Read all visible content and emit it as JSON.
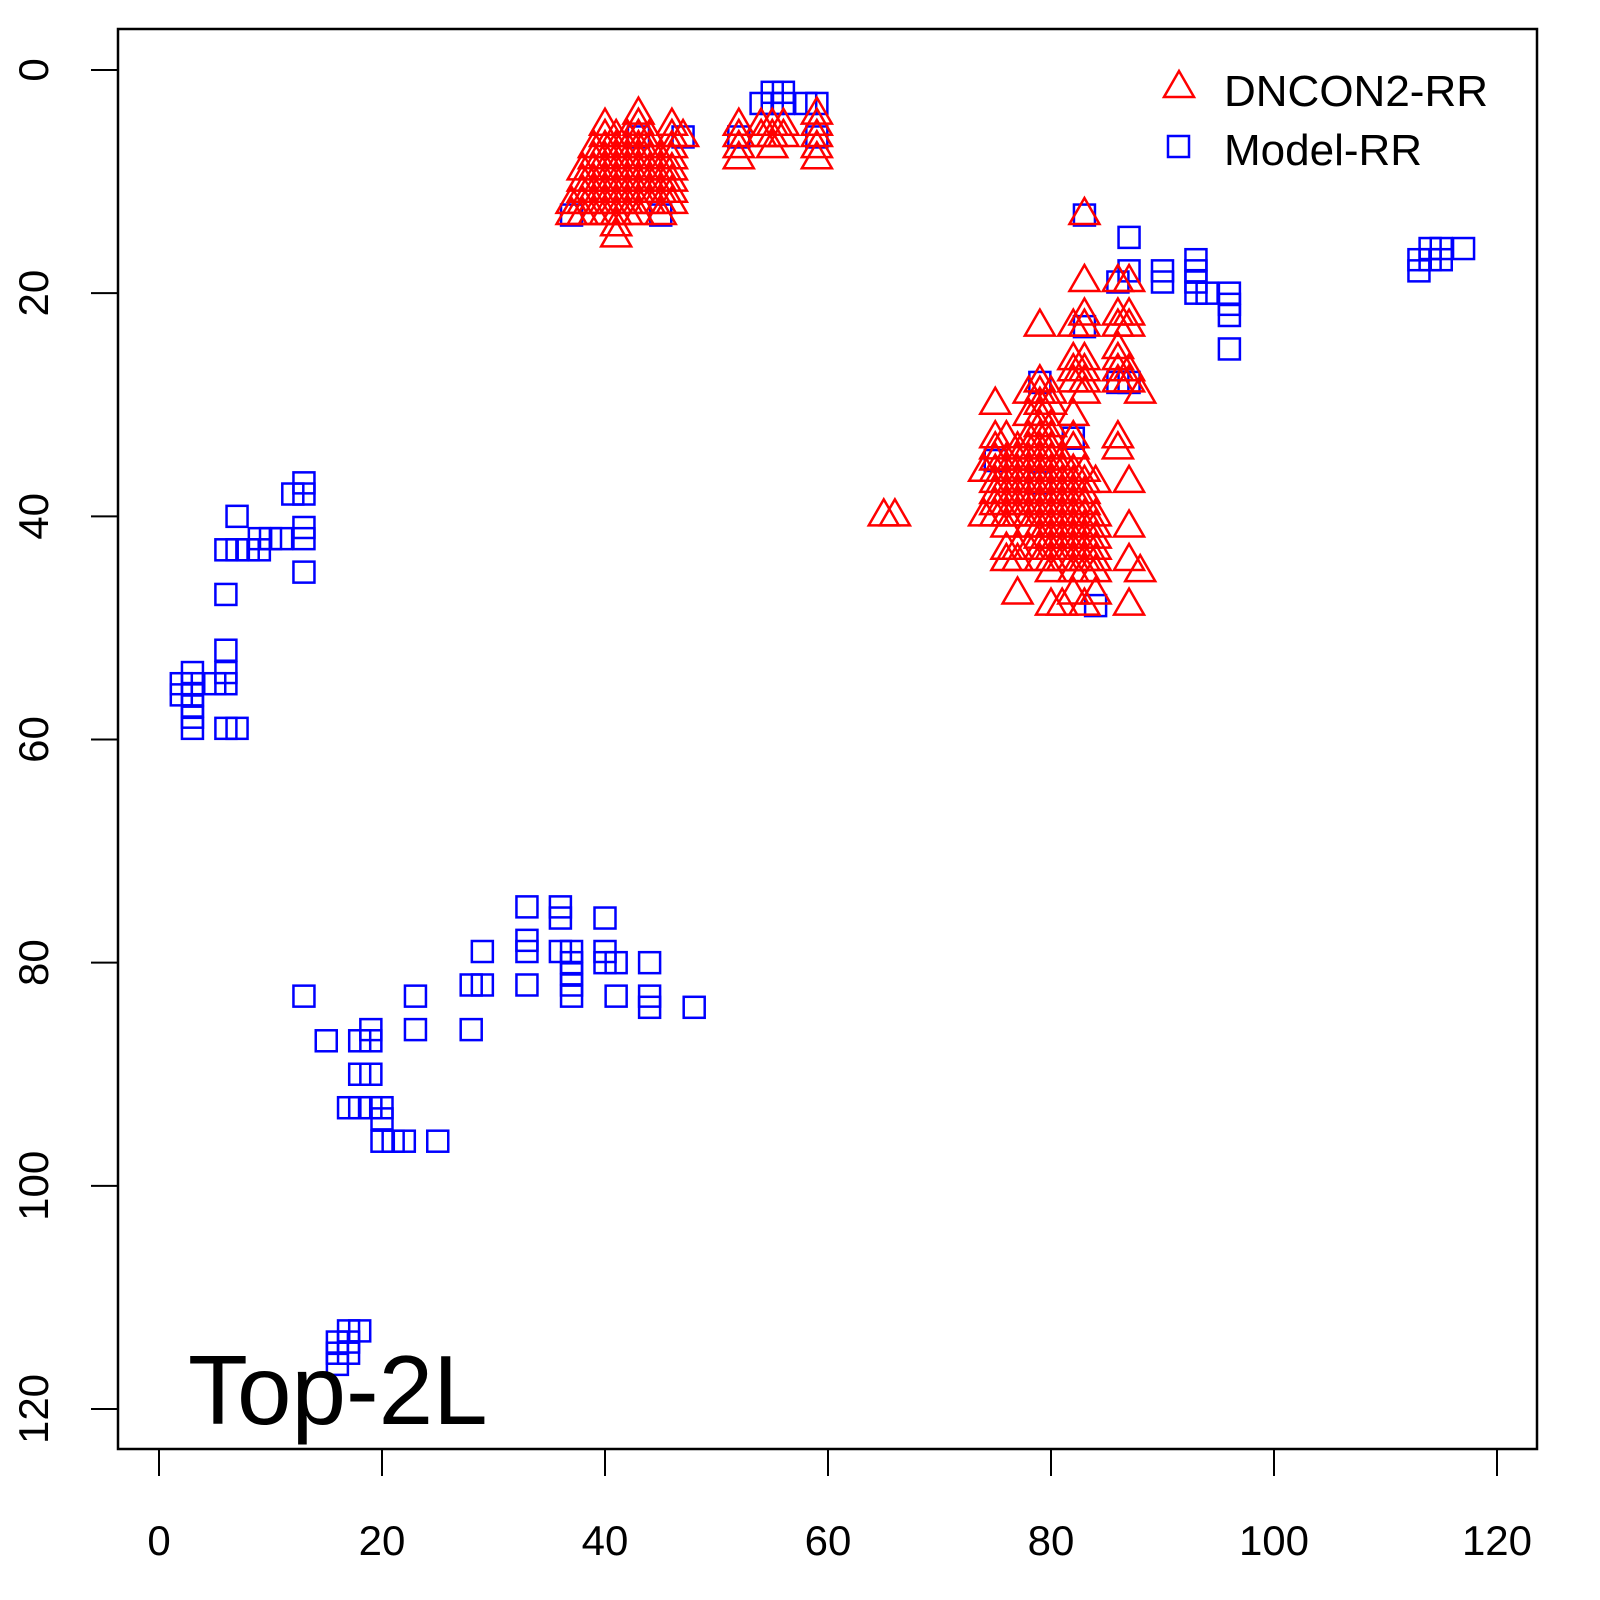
{
  "chart_data": {
    "type": "scatter",
    "title": "",
    "annotation": "Top-2L",
    "xlabel": "",
    "ylabel": "",
    "xlim": [
      -2,
      124
    ],
    "ylim": [
      124,
      -4
    ],
    "y_inverted": true,
    "x_ticks": [
      0,
      20,
      40,
      60,
      80,
      100,
      120
    ],
    "y_ticks": [
      0,
      20,
      40,
      60,
      80,
      100,
      120
    ],
    "legend": {
      "placement": "top-right",
      "entries": [
        "DNCON2-RR",
        "Model-RR"
      ]
    },
    "series": [
      {
        "name": "DNCON2-RR",
        "marker": "triangle",
        "color": "#ff0000",
        "columns": [
          {
            "x": 37,
            "ys": [
              12,
              13
            ]
          },
          {
            "x": 38,
            "ys": [
              9,
              10,
              11,
              12,
              13
            ]
          },
          {
            "x": 39,
            "ys": [
              7,
              8,
              9,
              10,
              11,
              12,
              13
            ]
          },
          {
            "x": 40,
            "ys": [
              5,
              6,
              7,
              8,
              9,
              10,
              11,
              12,
              13
            ]
          },
          {
            "x": 41,
            "ys": [
              6,
              7,
              8,
              9,
              10,
              11,
              12,
              13,
              14,
              15
            ]
          },
          {
            "x": 42,
            "ys": [
              6,
              7,
              8,
              9,
              10,
              11,
              12,
              13
            ]
          },
          {
            "x": 43,
            "ys": [
              4,
              5,
              6,
              7,
              8,
              9,
              10,
              11,
              12,
              13
            ]
          },
          {
            "x": 44,
            "ys": [
              6,
              7,
              8,
              9,
              10,
              11,
              12
            ]
          },
          {
            "x": 45,
            "ys": [
              8,
              9,
              10,
              11,
              12,
              13
            ]
          },
          {
            "x": 46,
            "ys": [
              5,
              6,
              7,
              8,
              9,
              10,
              11,
              12
            ]
          },
          {
            "x": 47,
            "ys": [
              6
            ]
          },
          {
            "x": 52,
            "ys": [
              5,
              6,
              7,
              8
            ]
          },
          {
            "x": 54,
            "ys": [
              5,
              6
            ]
          },
          {
            "x": 55,
            "ys": [
              5,
              6,
              7
            ]
          },
          {
            "x": 56,
            "ys": [
              5,
              6
            ]
          },
          {
            "x": 59,
            "ys": [
              4,
              5,
              6,
              7,
              8
            ]
          },
          {
            "x": 65,
            "ys": [
              40
            ]
          },
          {
            "x": 66,
            "ys": [
              40
            ]
          },
          {
            "x": 74,
            "ys": [
              36,
              40
            ]
          },
          {
            "x": 75,
            "ys": [
              30,
              33,
              34,
              35,
              36,
              37,
              38,
              39,
              40
            ]
          },
          {
            "x": 76,
            "ys": [
              33,
              35,
              36,
              37,
              38,
              39,
              40,
              41,
              43,
              44
            ]
          },
          {
            "x": 77,
            "ys": [
              34,
              35,
              36,
              37,
              38,
              39,
              40,
              43,
              44,
              47
            ]
          },
          {
            "x": 78,
            "ys": [
              29,
              31,
              33,
              34,
              35,
              36,
              37,
              38,
              39,
              40,
              41,
              43
            ]
          },
          {
            "x": 79,
            "ys": [
              23,
              28,
              29,
              30,
              31,
              32,
              33,
              34,
              35,
              36,
              37,
              38,
              39,
              40,
              41,
              42,
              43,
              44
            ]
          },
          {
            "x": 80,
            "ys": [
              29,
              30,
              32,
              33,
              34,
              35,
              36,
              37,
              38,
              39,
              40,
              41,
              42,
              43,
              44,
              45,
              48
            ]
          },
          {
            "x": 81,
            "ys": [
              35,
              36,
              37,
              38,
              39,
              40,
              41,
              42,
              43,
              44,
              48
            ]
          },
          {
            "x": 82,
            "ys": [
              23,
              26,
              27,
              28,
              31,
              33,
              34,
              36,
              37,
              38,
              39,
              40,
              41,
              42,
              43,
              44,
              45,
              47
            ]
          },
          {
            "x": 83,
            "ys": [
              13,
              19,
              22,
              23,
              26,
              27,
              28,
              29,
              36,
              37,
              38,
              39,
              40,
              41,
              42,
              43,
              44,
              45,
              48
            ]
          },
          {
            "x": 84,
            "ys": [
              37,
              40,
              41,
              42,
              43,
              44,
              45,
              47
            ]
          },
          {
            "x": 86,
            "ys": [
              19,
              22,
              23,
              25,
              26,
              27,
              28,
              33,
              34
            ]
          },
          {
            "x": 87,
            "ys": [
              19,
              22,
              23,
              27,
              28,
              37,
              41,
              44,
              48
            ]
          },
          {
            "x": 88,
            "ys": [
              29,
              45
            ]
          }
        ]
      },
      {
        "name": "Model-RR",
        "marker": "square",
        "color": "#0000ff",
        "points": [
          [
            7,
            40
          ],
          [
            6,
            43
          ],
          [
            7,
            43
          ],
          [
            8,
            43
          ],
          [
            9,
            42
          ],
          [
            9,
            43
          ],
          [
            10,
            42
          ],
          [
            11,
            42
          ],
          [
            12,
            38
          ],
          [
            13,
            38
          ],
          [
            13,
            37
          ],
          [
            13,
            41
          ],
          [
            13,
            42
          ],
          [
            13,
            45
          ],
          [
            6,
            47
          ],
          [
            6,
            52
          ],
          [
            6,
            54
          ],
          [
            6,
            55
          ],
          [
            5,
            55
          ],
          [
            7,
            59
          ],
          [
            6,
            59
          ],
          [
            3,
            54
          ],
          [
            3,
            55
          ],
          [
            2,
            55
          ],
          [
            2,
            56
          ],
          [
            3,
            56
          ],
          [
            3,
            57
          ],
          [
            3,
            58
          ],
          [
            3,
            59
          ],
          [
            13,
            83
          ],
          [
            15,
            87
          ],
          [
            18,
            87
          ],
          [
            19,
            86
          ],
          [
            19,
            87
          ],
          [
            18,
            90
          ],
          [
            19,
            90
          ],
          [
            17,
            93
          ],
          [
            18,
            93
          ],
          [
            19,
            93
          ],
          [
            20,
            93
          ],
          [
            20,
            94
          ],
          [
            20,
            96
          ],
          [
            21,
            96
          ],
          [
            22,
            96
          ],
          [
            25,
            96
          ],
          [
            23,
            83
          ],
          [
            23,
            86
          ],
          [
            28,
            86
          ],
          [
            28,
            82
          ],
          [
            29,
            82
          ],
          [
            29,
            79
          ],
          [
            33,
            75
          ],
          [
            33,
            78
          ],
          [
            33,
            79
          ],
          [
            33,
            82
          ],
          [
            36,
            75
          ],
          [
            36,
            76
          ],
          [
            36,
            79
          ],
          [
            37,
            79
          ],
          [
            37,
            80
          ],
          [
            37,
            81
          ],
          [
            37,
            82
          ],
          [
            37,
            83
          ],
          [
            40,
            76
          ],
          [
            40,
            79
          ],
          [
            40,
            80
          ],
          [
            41,
            80
          ],
          [
            41,
            83
          ],
          [
            44,
            80
          ],
          [
            44,
            83
          ],
          [
            44,
            84
          ],
          [
            48,
            84
          ],
          [
            16,
            114
          ],
          [
            16,
            115
          ],
          [
            16,
            116
          ],
          [
            17,
            113
          ],
          [
            17,
            114
          ],
          [
            17,
            115
          ],
          [
            18,
            113
          ],
          [
            54,
            3
          ],
          [
            55,
            2
          ],
          [
            56,
            2
          ],
          [
            55,
            3
          ],
          [
            56,
            3
          ],
          [
            58,
            3
          ],
          [
            59,
            3
          ],
          [
            52,
            6
          ],
          [
            47,
            6
          ],
          [
            37,
            13
          ],
          [
            45,
            13
          ],
          [
            43,
            6
          ],
          [
            59,
            6
          ],
          [
            83,
            13
          ],
          [
            87,
            15
          ],
          [
            87,
            18
          ],
          [
            86,
            19
          ],
          [
            90,
            18
          ],
          [
            90,
            19
          ],
          [
            93,
            17
          ],
          [
            93,
            18
          ],
          [
            93,
            19
          ],
          [
            93,
            20
          ],
          [
            94,
            20
          ],
          [
            96,
            20
          ],
          [
            96,
            21
          ],
          [
            96,
            22
          ],
          [
            96,
            25
          ],
          [
            113,
            17
          ],
          [
            113,
            18
          ],
          [
            114,
            16
          ],
          [
            114,
            17
          ],
          [
            115,
            16
          ],
          [
            115,
            17
          ],
          [
            117,
            16
          ],
          [
            84,
            48
          ],
          [
            79,
            28
          ],
          [
            83,
            23
          ],
          [
            86,
            28
          ],
          [
            87,
            28
          ],
          [
            75,
            35
          ],
          [
            82,
            33
          ],
          [
            79,
            37
          ]
        ]
      }
    ]
  }
}
